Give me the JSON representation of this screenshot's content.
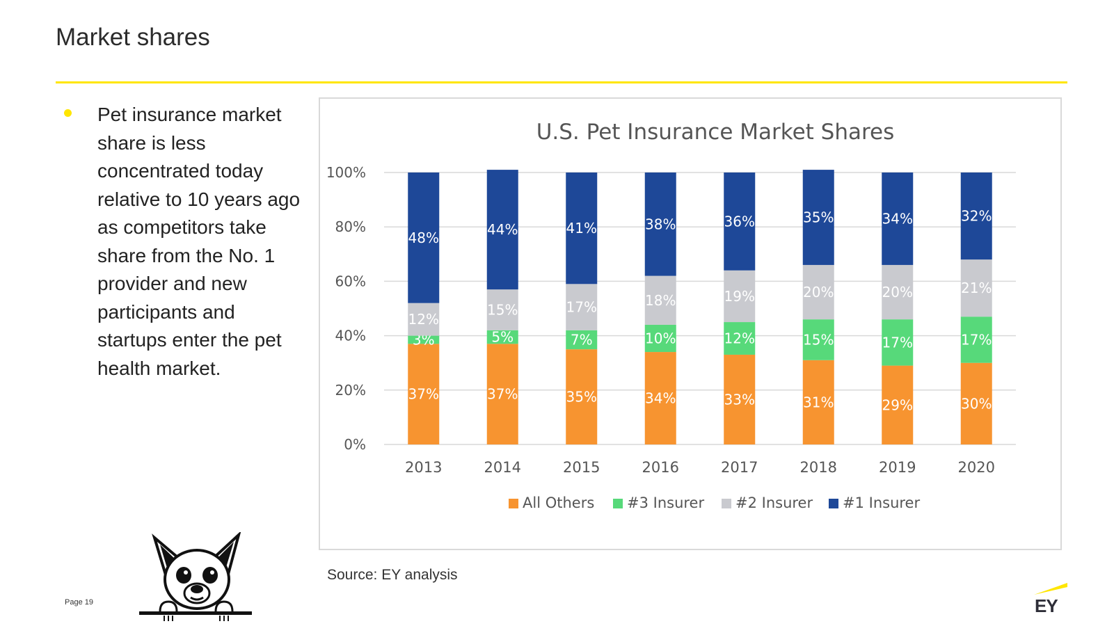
{
  "slide": {
    "title": "Market shares",
    "bullet": "Pet insurance market share is less concentrated today relative to 10 years ago as competitors take share from the No. 1 provider and new participants and startups enter the pet health market.",
    "source": "Source:  EY analysis",
    "page_label": "Page 19",
    "logo_text": "EY"
  },
  "colors": {
    "accent_yellow": "#ffe600",
    "all_others": "#f79430",
    "insurer3": "#57d97a",
    "insurer2": "#c9cacf",
    "insurer1": "#1e4898"
  },
  "chart_data": {
    "type": "bar",
    "stacked": true,
    "title": "U.S. Pet Insurance Market Shares",
    "categories": [
      "2013",
      "2014",
      "2015",
      "2016",
      "2017",
      "2018",
      "2019",
      "2020"
    ],
    "y_ticks": [
      "0%",
      "20%",
      "40%",
      "60%",
      "80%",
      "100%"
    ],
    "ylim": [
      0,
      100
    ],
    "grid": true,
    "legend_position": "bottom",
    "series": [
      {
        "name": "All Others",
        "color": "#f79430",
        "values": [
          37,
          37,
          35,
          34,
          33,
          31,
          29,
          30
        ],
        "labels": [
          "37%",
          "37%",
          "35%",
          "34%",
          "33%",
          "31%",
          "29%",
          "30%"
        ]
      },
      {
        "name": "#3 Insurer",
        "color": "#57d97a",
        "values": [
          3,
          5,
          7,
          10,
          12,
          15,
          17,
          17
        ],
        "labels": [
          "3%",
          "5%",
          "7%",
          "10%",
          "12%",
          "15%",
          "17%",
          "17%"
        ]
      },
      {
        "name": "#2 Insurer",
        "color": "#c9cacf",
        "values": [
          12,
          15,
          17,
          18,
          19,
          20,
          20,
          21
        ],
        "labels": [
          "12%",
          "15%",
          "17%",
          "18%",
          "19%",
          "20%",
          "20%",
          "21%"
        ]
      },
      {
        "name": "#1 Insurer",
        "color": "#1e4898",
        "values": [
          48,
          44,
          41,
          38,
          36,
          35,
          34,
          32
        ],
        "labels": [
          "48%",
          "44%",
          "41%",
          "38%",
          "36%",
          "35%",
          "34%",
          "32%"
        ]
      }
    ]
  }
}
